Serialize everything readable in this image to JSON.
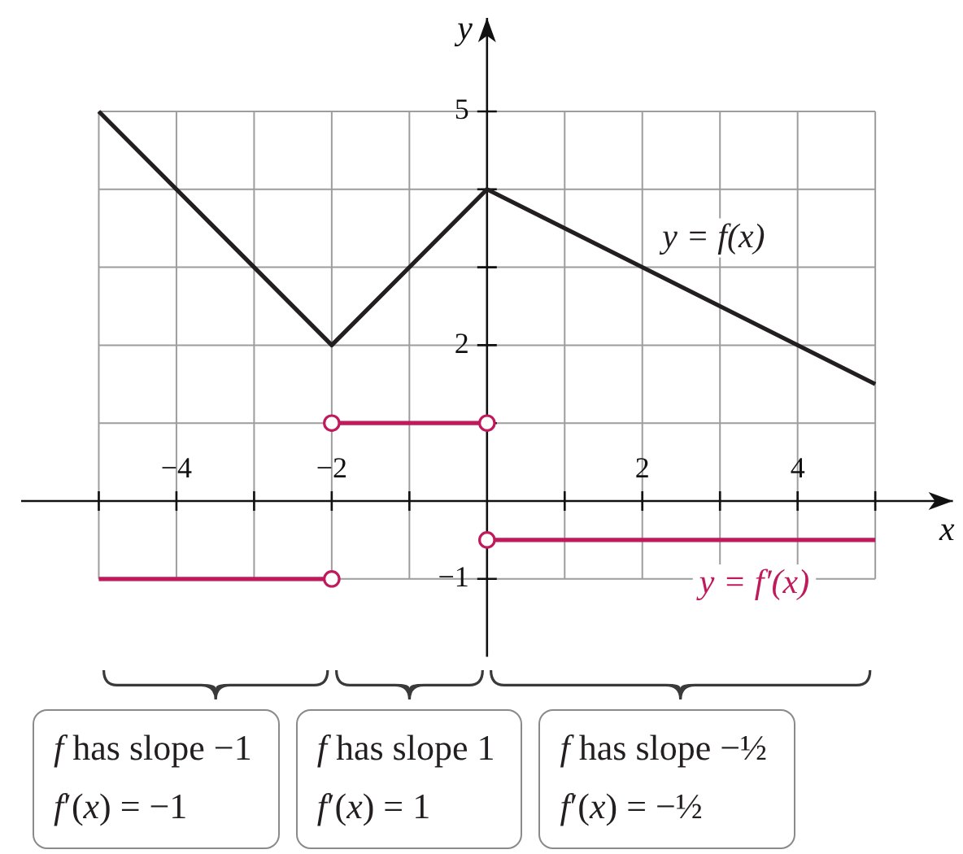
{
  "chart_data": {
    "type": "line",
    "xlabel": "x",
    "ylabel": "y",
    "xlim": [
      -6,
      6
    ],
    "ylim": [
      -2,
      6.2
    ],
    "xticks": [
      {
        "value": -5,
        "label": null
      },
      {
        "value": -4,
        "label": "−4"
      },
      {
        "value": -3,
        "label": null
      },
      {
        "value": -2,
        "label": "−2"
      },
      {
        "value": -1,
        "label": null
      },
      {
        "value": 1,
        "label": null
      },
      2,
      {
        "value": 3,
        "label": null
      },
      4,
      {
        "value": 5,
        "label": null
      }
    ],
    "yticks": [
      {
        "value": -1,
        "label": "−1"
      },
      {
        "value": 1,
        "label": null
      },
      2,
      {
        "value": 3,
        "label": null
      },
      {
        "value": 4,
        "label": null
      },
      5
    ],
    "grid": true,
    "series": [
      {
        "name": "y = f(x)",
        "color": "#231f20",
        "x": [
          -5,
          -2,
          0,
          5
        ],
        "values": [
          5,
          2,
          4,
          1.5
        ]
      },
      {
        "color": "#bf1a5c",
        "x": [
          -5,
          -2
        ],
        "values": [
          -1,
          -1
        ]
      },
      {
        "color": "#bf1a5c",
        "x": [
          -2,
          0
        ],
        "values": [
          1,
          1
        ]
      },
      {
        "name": "y = f′(x)",
        "color": "#bf1a5c",
        "x": [
          0,
          5
        ],
        "values": [
          -0.5,
          -0.5
        ]
      },
      {
        "type": "scatter",
        "color": "#bf1a5c",
        "marker": "circle",
        "x": [
          -2,
          -2,
          0,
          0
        ],
        "values": [
          -1,
          1,
          1,
          -0.5
        ]
      }
    ],
    "annotations": [
      "f has slope −1\nf′(x) = −1",
      "f has slope 1\nf′(x) = 1",
      "f has slope −½\nf′(x) = −½"
    ]
  }
}
